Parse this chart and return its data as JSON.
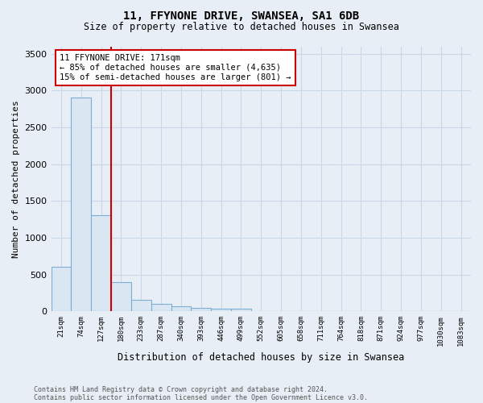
{
  "title1": "11, FFYNONE DRIVE, SWANSEA, SA1 6DB",
  "title2": "Size of property relative to detached houses in Swansea",
  "xlabel": "Distribution of detached houses by size in Swansea",
  "ylabel": "Number of detached properties",
  "footnote1": "Contains HM Land Registry data © Crown copyright and database right 2024.",
  "footnote2": "Contains public sector information licensed under the Open Government Licence v3.0.",
  "annotation_line1": "11 FFYNONE DRIVE: 171sqm",
  "annotation_line2": "← 85% of detached houses are smaller (4,635)",
  "annotation_line3": "15% of semi-detached houses are larger (801) →",
  "bin_labels": [
    "21sqm",
    "74sqm",
    "127sqm",
    "180sqm",
    "233sqm",
    "287sqm",
    "340sqm",
    "393sqm",
    "446sqm",
    "499sqm",
    "552sqm",
    "605sqm",
    "658sqm",
    "711sqm",
    "764sqm",
    "818sqm",
    "871sqm",
    "924sqm",
    "977sqm",
    "1030sqm",
    "1083sqm"
  ],
  "bar_values": [
    600,
    2900,
    1300,
    400,
    160,
    100,
    65,
    45,
    30,
    30,
    0,
    0,
    0,
    0,
    0,
    0,
    0,
    0,
    0,
    0,
    0
  ],
  "bar_color": "#dae6f2",
  "bar_edge_color": "#7bafd4",
  "grid_color": "#c8d8e8",
  "background_color": "#e8eef5",
  "plot_bg_color": "#e8eef5",
  "ylim": [
    0,
    3600
  ],
  "red_line_bin_index": 2.5
}
